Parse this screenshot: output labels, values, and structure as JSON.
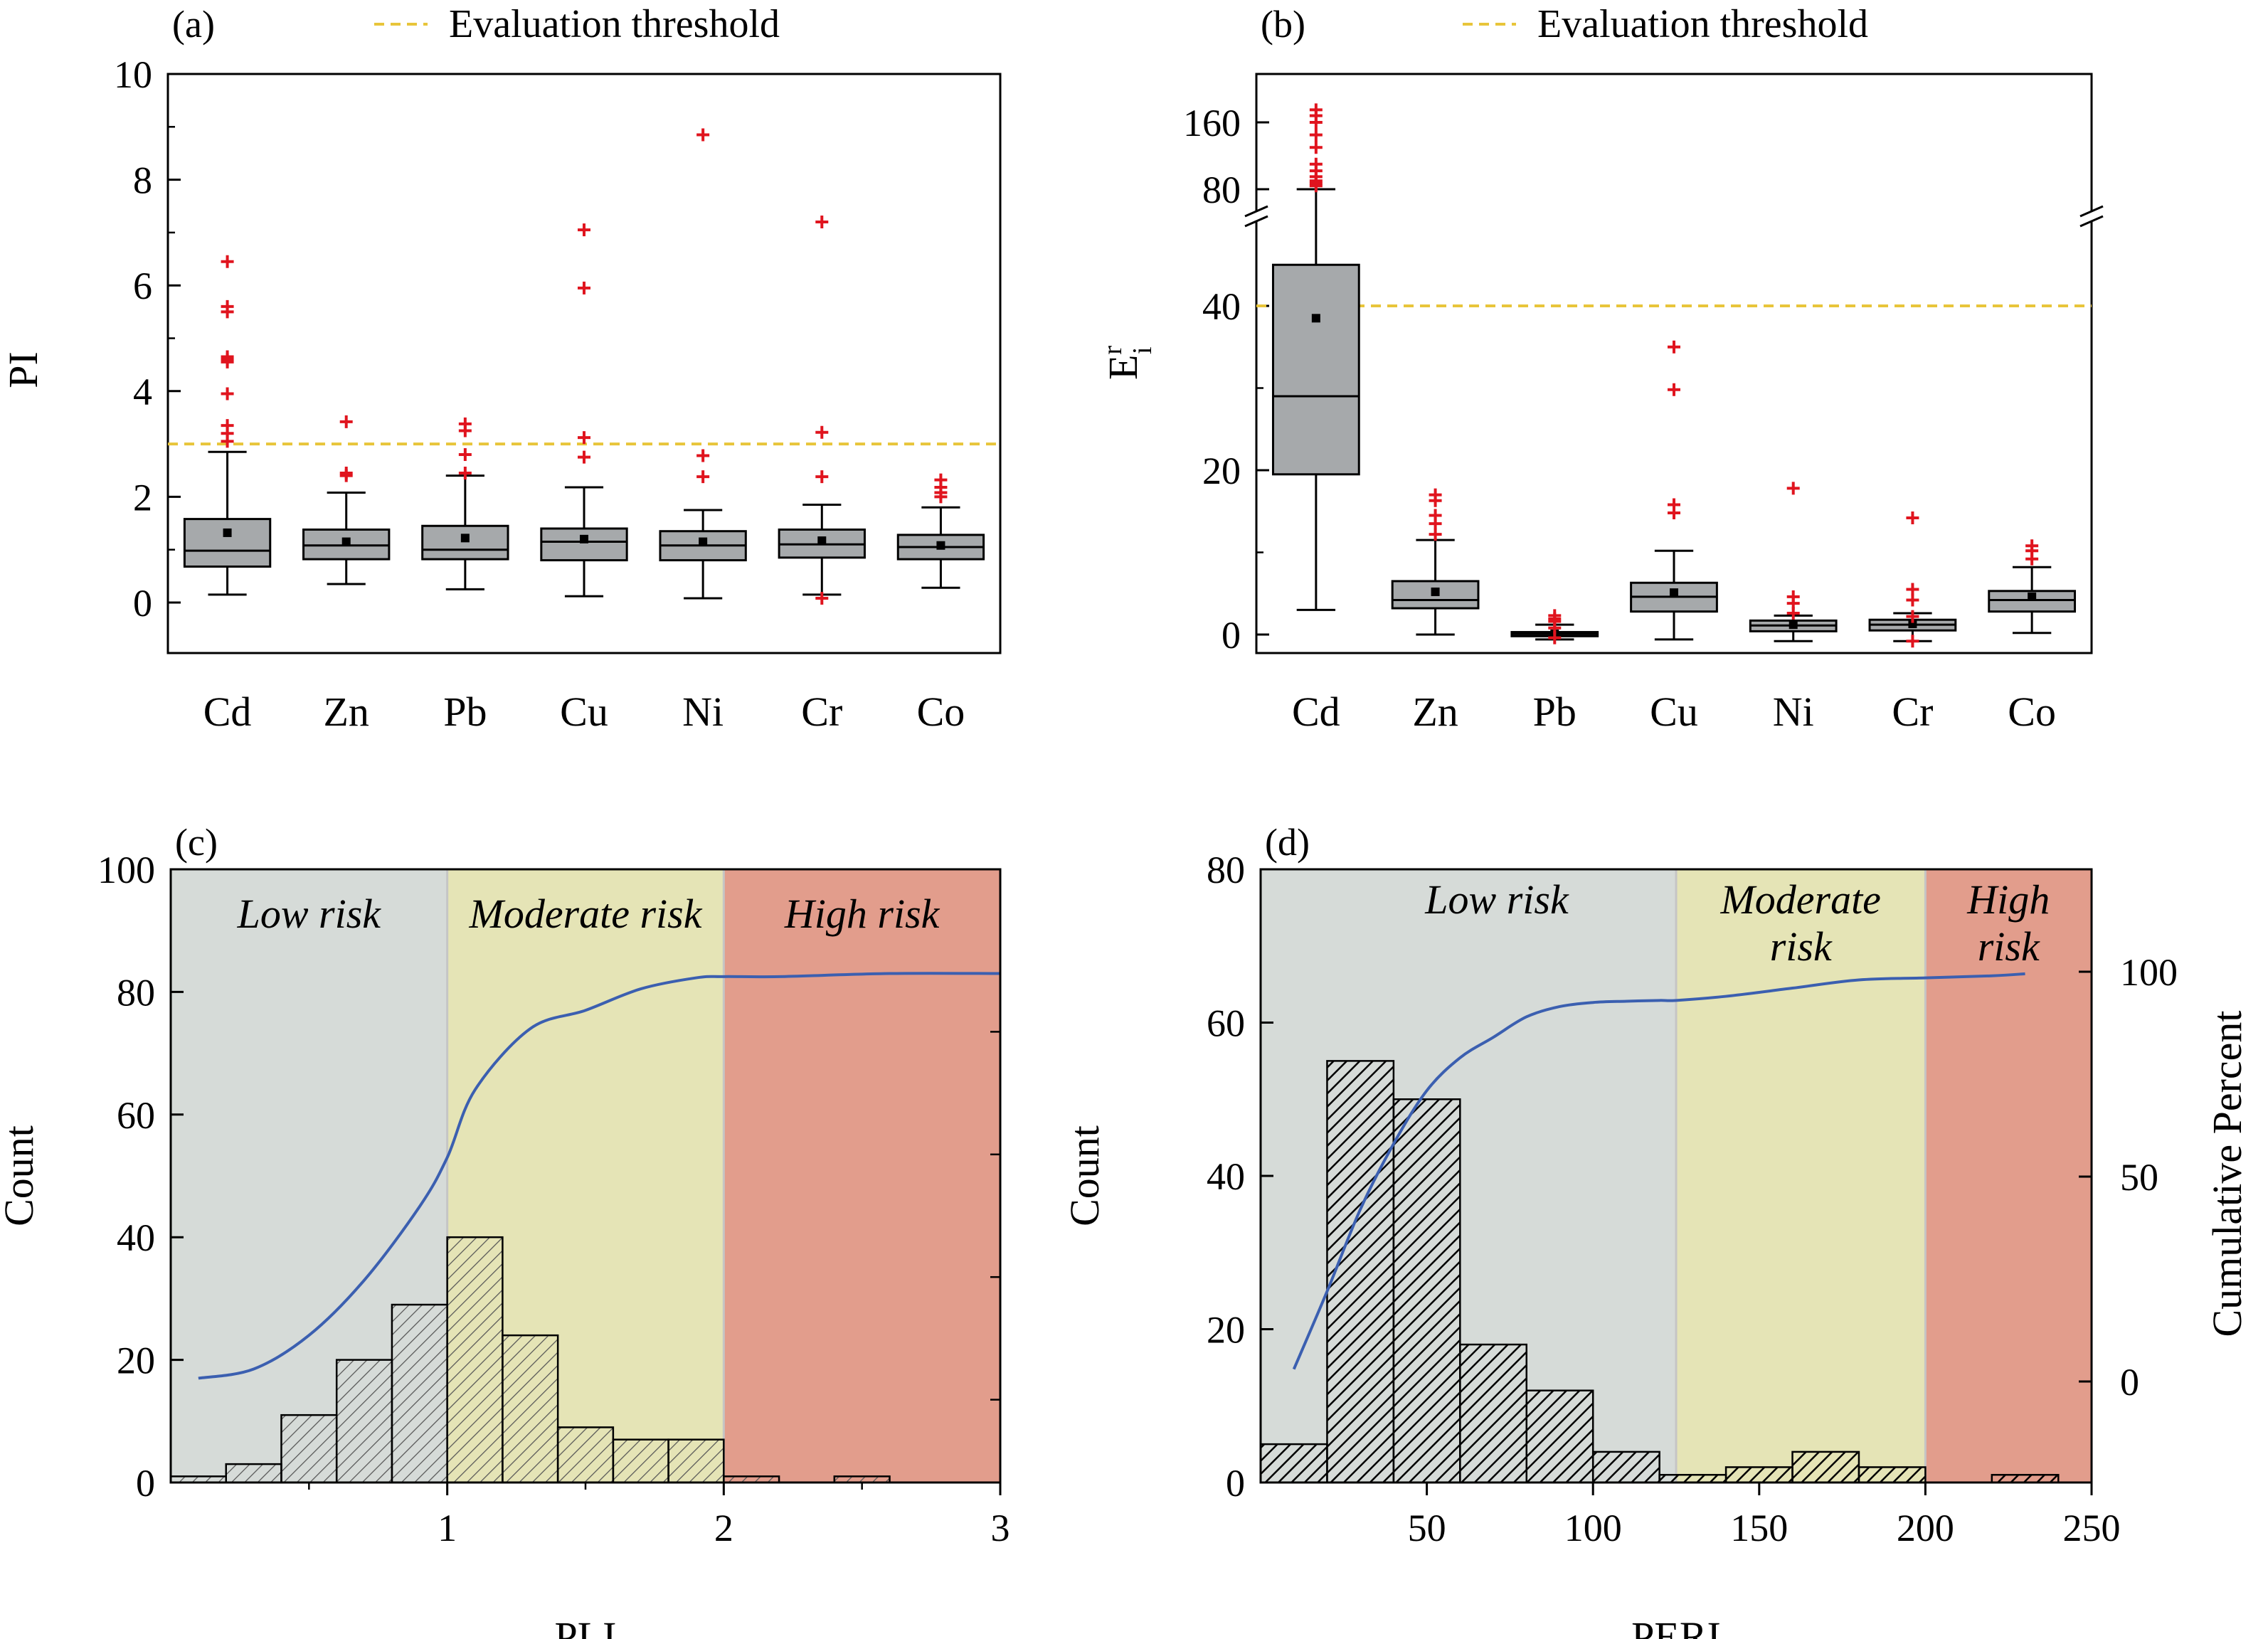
{
  "figure": {
    "colors": {
      "box_fill": "#a6a9ab",
      "outlier": "#e0141e",
      "threshold": "#e8c53a",
      "cumulative_line": "#3b5fb0",
      "zone_low": "#d6dbd8",
      "zone_moderate": "#e5e4b6",
      "zone_high": "#e29d8c"
    }
  },
  "chart_data": [
    {
      "id": "a",
      "type": "box",
      "panel_label": "(a)",
      "legend": {
        "label": "Evaluation threshold",
        "placement": "top"
      },
      "ylabel": "PI",
      "xlabel": "",
      "ylim": [
        -1,
        10
      ],
      "yticks": [
        0,
        2,
        4,
        6,
        8,
        10
      ],
      "threshold": 3,
      "categories": [
        "Cd",
        "Zn",
        "Pb",
        "Cu",
        "Ni",
        "Cr",
        "Co"
      ],
      "boxes": [
        {
          "min": 0.15,
          "q1": 0.68,
          "median": 0.98,
          "q3": 1.58,
          "max": 2.85,
          "mean": 1.32,
          "outliers": [
            6.45,
            5.6,
            5.5,
            4.65,
            4.6,
            4.55,
            3.95,
            3.35,
            3.2,
            3.05
          ]
        },
        {
          "min": 0.35,
          "q1": 0.82,
          "median": 1.08,
          "q3": 1.38,
          "max": 2.08,
          "mean": 1.15,
          "outliers": [
            3.42,
            2.45,
            2.4
          ]
        },
        {
          "min": 0.25,
          "q1": 0.82,
          "median": 1.0,
          "q3": 1.45,
          "max": 2.4,
          "mean": 1.22,
          "outliers": [
            3.38,
            3.25,
            2.8,
            2.45
          ]
        },
        {
          "min": 0.12,
          "q1": 0.8,
          "median": 1.15,
          "q3": 1.4,
          "max": 2.18,
          "mean": 1.2,
          "outliers": [
            7.05,
            5.95,
            3.12,
            2.75
          ]
        },
        {
          "min": 0.08,
          "q1": 0.8,
          "median": 1.08,
          "q3": 1.35,
          "max": 1.75,
          "mean": 1.15,
          "outliers": [
            8.85,
            2.78,
            2.38
          ]
        },
        {
          "min": 0.15,
          "q1": 0.85,
          "median": 1.1,
          "q3": 1.38,
          "max": 1.85,
          "mean": 1.17,
          "outliers": [
            7.2,
            3.22,
            2.38,
            0.08
          ]
        },
        {
          "min": 0.28,
          "q1": 0.82,
          "median": 1.05,
          "q3": 1.28,
          "max": 1.8,
          "mean": 1.08,
          "outliers": [
            2.32,
            2.18,
            2.08,
            2.0
          ]
        }
      ]
    },
    {
      "id": "b",
      "type": "box",
      "panel_label": "(b)",
      "legend": {
        "label": "Evaluation threshold",
        "placement": "top"
      },
      "ylabel": "E",
      "ylabel_superscript": "r",
      "ylabel_subscript": "i",
      "xlabel": "",
      "scale": "broken",
      "ylim_lower": [
        -2,
        53
      ],
      "ylim_upper": [
        60,
        180
      ],
      "yticks": [
        0,
        20,
        40,
        80,
        160
      ],
      "threshold": 40,
      "categories": [
        "Cd",
        "Zn",
        "Pb",
        "Cu",
        "Ni",
        "Cr",
        "Co"
      ],
      "boxes": [
        {
          "min": 3,
          "q1": 19.5,
          "median": 29,
          "q3": 45,
          "max": 80,
          "mean": 38.5,
          "outliers": [
            175,
            168,
            160,
            145,
            130,
            110,
            102,
            95,
            90,
            87,
            84
          ]
        },
        {
          "min": 0,
          "q1": 3.2,
          "median": 4.2,
          "q3": 6.5,
          "max": 11.5,
          "mean": 5.2,
          "outliers": [
            17,
            16.3,
            14.5,
            13.5,
            12.2
          ]
        },
        {
          "min": -0.6,
          "q1": -0.2,
          "median": 0.05,
          "q3": 0.3,
          "max": 1.2,
          "mean": 0.1,
          "outliers": [
            2.3,
            1.9,
            1.6,
            0.8,
            -0.4
          ]
        },
        {
          "min": -0.6,
          "q1": 2.8,
          "median": 4.6,
          "q3": 6.3,
          "max": 10.2,
          "mean": 5.1,
          "outliers": [
            35,
            29.8,
            15.8,
            14.8
          ]
        },
        {
          "min": -0.8,
          "q1": 0.4,
          "median": 1.1,
          "q3": 1.7,
          "max": 2.3,
          "mean": 1.2,
          "outliers": [
            17.8,
            4.6,
            3.8,
            2.6
          ]
        },
        {
          "min": -0.8,
          "q1": 0.5,
          "median": 1.2,
          "q3": 1.8,
          "max": 2.6,
          "mean": 1.3,
          "outliers": [
            14.2,
            5.5,
            4.2,
            2.2,
            -0.8
          ]
        },
        {
          "min": 0.2,
          "q1": 2.8,
          "median": 4.2,
          "q3": 5.3,
          "max": 8.2,
          "mean": 4.6,
          "outliers": [
            10.8,
            10.2,
            9.2
          ]
        }
      ]
    },
    {
      "id": "c",
      "type": "histogram",
      "panel_label": "(c)",
      "xlabel": "PLI",
      "ylabel": "Count",
      "xlim": [
        0,
        3
      ],
      "ylim": [
        0,
        100
      ],
      "xticks": [
        1,
        2,
        3
      ],
      "yticks": [
        0,
        20,
        40,
        60,
        80,
        100
      ],
      "zones": [
        {
          "label": "Low risk",
          "from": 0,
          "to": 1,
          "color_key": "zone_low"
        },
        {
          "label": "Moderate risk",
          "from": 1,
          "to": 2,
          "color_key": "zone_moderate"
        },
        {
          "label": "High risk",
          "from": 2,
          "to": 3,
          "color_key": "zone_high"
        }
      ],
      "bin_width": 0.2,
      "bins": [
        {
          "start": 0.0,
          "count": 1
        },
        {
          "start": 0.2,
          "count": 3
        },
        {
          "start": 0.4,
          "count": 11
        },
        {
          "start": 0.6,
          "count": 20
        },
        {
          "start": 0.8,
          "count": 29
        },
        {
          "start": 1.0,
          "count": 40
        },
        {
          "start": 1.2,
          "count": 24
        },
        {
          "start": 1.4,
          "count": 9
        },
        {
          "start": 1.6,
          "count": 7
        },
        {
          "start": 1.8,
          "count": 7
        },
        {
          "start": 2.0,
          "count": 1
        },
        {
          "start": 2.4,
          "count": 1
        }
      ],
      "cumulative": {
        "x": [
          0.1,
          0.3,
          0.5,
          0.7,
          0.9,
          1.0,
          1.1,
          1.3,
          1.5,
          1.7,
          1.9,
          2.0,
          2.2,
          2.6,
          3.0
        ],
        "y": [
          17,
          18.5,
          24,
          33,
          45,
          53,
          64,
          74,
          77,
          80.5,
          82.3,
          82.5,
          82.5,
          83,
          83
        ]
      }
    },
    {
      "id": "d",
      "type": "histogram",
      "panel_label": "(d)",
      "xlabel": "PERI",
      "ylabel": "Count",
      "y2label": "Cumulative Percent",
      "xlim": [
        0,
        250
      ],
      "ylim": [
        0,
        80
      ],
      "y2lim": [
        -20,
        135
      ],
      "xticks": [
        50,
        100,
        150,
        200,
        250
      ],
      "yticks": [
        0,
        20,
        40,
        60,
        80
      ],
      "y2ticks": [
        0,
        50,
        100
      ],
      "zones": [
        {
          "label": "Low risk",
          "from": 0,
          "to": 125,
          "color_key": "zone_low"
        },
        {
          "label": "Moderate risk",
          "from": 125,
          "to": 200,
          "color_key": "zone_moderate"
        },
        {
          "label": "High risk",
          "from": 200,
          "to": 250,
          "color_key": "zone_high"
        }
      ],
      "bin_width": 20,
      "bins": [
        {
          "start": 0,
          "count": 5
        },
        {
          "start": 20,
          "count": 55
        },
        {
          "start": 40,
          "count": 50
        },
        {
          "start": 60,
          "count": 18
        },
        {
          "start": 80,
          "count": 12
        },
        {
          "start": 100,
          "count": 4
        },
        {
          "start": 120,
          "count": 1
        },
        {
          "start": 140,
          "count": 2
        },
        {
          "start": 160,
          "count": 4
        },
        {
          "start": 180,
          "count": 2
        },
        {
          "start": 220,
          "count": 1
        }
      ],
      "cumulative": {
        "x": [
          10,
          20,
          30,
          40,
          50,
          60,
          70,
          80,
          90,
          100,
          110,
          120,
          125,
          140,
          160,
          180,
          200,
          220,
          230
        ],
        "y2": [
          3,
          22,
          42,
          58,
          71,
          79,
          84,
          89,
          91.5,
          92.5,
          92.8,
          93,
          93,
          94,
          96,
          98,
          98.5,
          99,
          99.5
        ]
      }
    }
  ]
}
